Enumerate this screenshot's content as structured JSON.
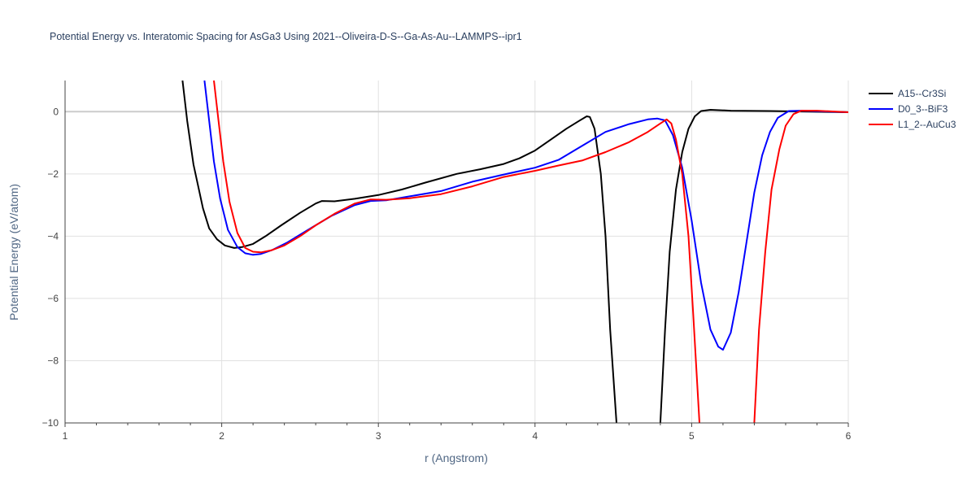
{
  "chart_data": {
    "type": "line",
    "title": "Potential Energy vs. Interatomic Spacing for AsGa3 Using 2021--Oliveira-D-S--Ga-As-Au--LAMMPS--ipr1",
    "xlabel": "r (Angstrom)",
    "ylabel": "Potential Energy (eV/atom)",
    "xlim": [
      1,
      6
    ],
    "ylim": [
      -10,
      1
    ],
    "x_ticks": [
      1,
      2,
      3,
      4,
      5,
      6
    ],
    "x_tick_labels": [
      "1",
      "2",
      "3",
      "4",
      "5",
      "6"
    ],
    "y_ticks": [
      0,
      -2,
      -4,
      -6,
      -8,
      -10
    ],
    "y_tick_labels": [
      "0",
      "−2",
      "−4",
      "−6",
      "−8",
      "−10"
    ],
    "grid": true,
    "legend_position": "top-right",
    "series": [
      {
        "name": "A15--Cr3Si",
        "color": "#000000",
        "points": [
          [
            1.75,
            1.0
          ],
          [
            1.78,
            -0.3
          ],
          [
            1.82,
            -1.7
          ],
          [
            1.85,
            -2.4
          ],
          [
            1.88,
            -3.1
          ],
          [
            1.92,
            -3.75
          ],
          [
            1.97,
            -4.1
          ],
          [
            2.02,
            -4.3
          ],
          [
            2.08,
            -4.38
          ],
          [
            2.13,
            -4.35
          ],
          [
            2.2,
            -4.25
          ],
          [
            2.28,
            -4.0
          ],
          [
            2.38,
            -3.65
          ],
          [
            2.5,
            -3.25
          ],
          [
            2.6,
            -2.95
          ],
          [
            2.64,
            -2.87
          ],
          [
            2.72,
            -2.88
          ],
          [
            2.85,
            -2.8
          ],
          [
            3.0,
            -2.68
          ],
          [
            3.15,
            -2.5
          ],
          [
            3.3,
            -2.28
          ],
          [
            3.5,
            -2.0
          ],
          [
            3.65,
            -1.85
          ],
          [
            3.8,
            -1.68
          ],
          [
            3.9,
            -1.5
          ],
          [
            4.0,
            -1.25
          ],
          [
            4.1,
            -0.9
          ],
          [
            4.2,
            -0.55
          ],
          [
            4.28,
            -0.3
          ],
          [
            4.33,
            -0.15
          ],
          [
            4.35,
            -0.17
          ],
          [
            4.38,
            -0.55
          ],
          [
            4.42,
            -2.0
          ],
          [
            4.45,
            -4.0
          ],
          [
            4.48,
            -7.0
          ],
          [
            4.52,
            -10.0
          ]
        ],
        "points_b": [
          [
            4.8,
            -10.0
          ],
          [
            4.83,
            -7.0
          ],
          [
            4.86,
            -4.5
          ],
          [
            4.9,
            -2.5
          ],
          [
            4.94,
            -1.3
          ],
          [
            4.98,
            -0.55
          ],
          [
            5.02,
            -0.15
          ],
          [
            5.06,
            0.02
          ],
          [
            5.12,
            0.06
          ],
          [
            5.25,
            0.03
          ],
          [
            5.5,
            0.02
          ],
          [
            5.75,
            0.0
          ],
          [
            6.0,
            -0.02
          ]
        ]
      },
      {
        "name": "D0_3--BiF3",
        "color": "#0000ff",
        "points": [
          [
            1.89,
            1.0
          ],
          [
            1.92,
            -0.3
          ],
          [
            1.95,
            -1.6
          ],
          [
            1.99,
            -2.8
          ],
          [
            2.04,
            -3.8
          ],
          [
            2.1,
            -4.35
          ],
          [
            2.15,
            -4.55
          ],
          [
            2.2,
            -4.6
          ],
          [
            2.25,
            -4.57
          ],
          [
            2.32,
            -4.45
          ],
          [
            2.42,
            -4.2
          ],
          [
            2.55,
            -3.8
          ],
          [
            2.7,
            -3.35
          ],
          [
            2.85,
            -3.0
          ],
          [
            2.95,
            -2.87
          ],
          [
            3.05,
            -2.85
          ],
          [
            3.2,
            -2.72
          ],
          [
            3.4,
            -2.55
          ],
          [
            3.6,
            -2.25
          ],
          [
            3.8,
            -2.02
          ],
          [
            4.0,
            -1.8
          ],
          [
            4.15,
            -1.55
          ],
          [
            4.3,
            -1.1
          ],
          [
            4.45,
            -0.65
          ],
          [
            4.6,
            -0.4
          ],
          [
            4.72,
            -0.25
          ],
          [
            4.78,
            -0.22
          ],
          [
            4.83,
            -0.28
          ],
          [
            4.88,
            -0.75
          ],
          [
            4.94,
            -1.8
          ],
          [
            5.0,
            -3.5
          ],
          [
            5.06,
            -5.5
          ],
          [
            5.12,
            -7.0
          ],
          [
            5.17,
            -7.55
          ],
          [
            5.2,
            -7.65
          ],
          [
            5.25,
            -7.1
          ],
          [
            5.3,
            -5.8
          ],
          [
            5.35,
            -4.2
          ],
          [
            5.4,
            -2.6
          ],
          [
            5.45,
            -1.4
          ],
          [
            5.5,
            -0.65
          ],
          [
            5.55,
            -0.2
          ],
          [
            5.62,
            0.02
          ],
          [
            5.7,
            0.03
          ],
          [
            6.0,
            -0.02
          ]
        ]
      },
      {
        "name": "L1_2--AuCu3",
        "color": "#ff0000",
        "points": [
          [
            1.95,
            1.0
          ],
          [
            1.98,
            -0.3
          ],
          [
            2.01,
            -1.6
          ],
          [
            2.05,
            -2.9
          ],
          [
            2.1,
            -3.9
          ],
          [
            2.15,
            -4.38
          ],
          [
            2.2,
            -4.5
          ],
          [
            2.25,
            -4.52
          ],
          [
            2.32,
            -4.45
          ],
          [
            2.4,
            -4.3
          ],
          [
            2.5,
            -4.0
          ],
          [
            2.6,
            -3.65
          ],
          [
            2.72,
            -3.28
          ],
          [
            2.85,
            -2.95
          ],
          [
            2.95,
            -2.82
          ],
          [
            3.05,
            -2.83
          ],
          [
            3.2,
            -2.78
          ],
          [
            3.4,
            -2.65
          ],
          [
            3.6,
            -2.4
          ],
          [
            3.8,
            -2.1
          ],
          [
            4.0,
            -1.9
          ],
          [
            4.15,
            -1.73
          ],
          [
            4.3,
            -1.57
          ],
          [
            4.45,
            -1.3
          ],
          [
            4.6,
            -0.98
          ],
          [
            4.72,
            -0.65
          ],
          [
            4.8,
            -0.38
          ],
          [
            4.84,
            -0.25
          ],
          [
            4.87,
            -0.38
          ],
          [
            4.9,
            -0.9
          ],
          [
            4.94,
            -2.0
          ],
          [
            4.98,
            -4.0
          ],
          [
            5.01,
            -6.5
          ],
          [
            5.05,
            -10.0
          ]
        ],
        "points_b": [
          [
            5.4,
            -10.0
          ],
          [
            5.43,
            -7.0
          ],
          [
            5.47,
            -4.5
          ],
          [
            5.51,
            -2.5
          ],
          [
            5.56,
            -1.2
          ],
          [
            5.6,
            -0.45
          ],
          [
            5.65,
            -0.08
          ],
          [
            5.7,
            0.03
          ],
          [
            5.8,
            0.03
          ],
          [
            6.0,
            -0.02
          ]
        ]
      }
    ]
  }
}
